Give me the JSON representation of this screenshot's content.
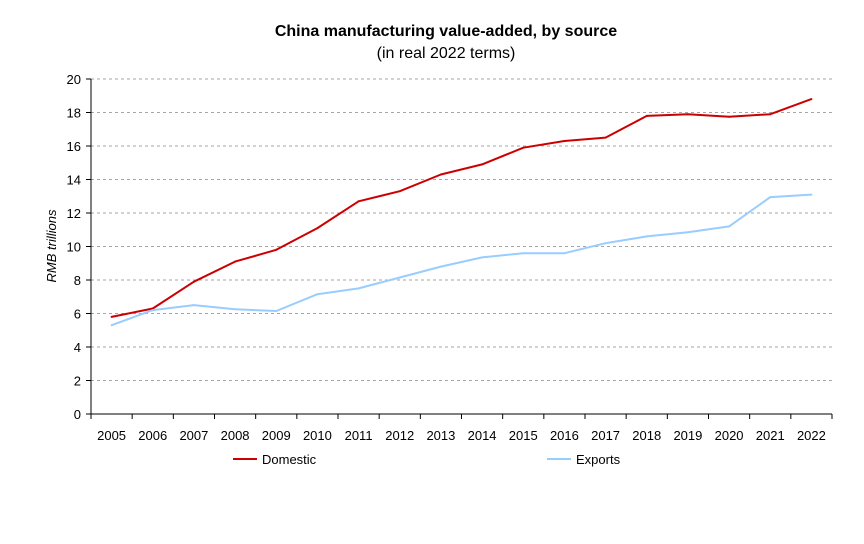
{
  "chart_data": {
    "type": "line",
    "title": "China manufacturing value-added, by source",
    "subtitle": "(in real 2022 terms)",
    "xlabel": "",
    "ylabel": "RMB trillions",
    "ylim": [
      0,
      20
    ],
    "yticks": [
      0,
      2,
      4,
      6,
      8,
      10,
      12,
      14,
      16,
      18,
      20
    ],
    "grid": true,
    "legend_position": "bottom",
    "categories": [
      "2005",
      "2006",
      "2007",
      "2008",
      "2009",
      "2010",
      "2011",
      "2012",
      "2013",
      "2014",
      "2015",
      "2016",
      "2017",
      "2018",
      "2019",
      "2020",
      "2021",
      "2022"
    ],
    "series": [
      {
        "name": "Domestic",
        "color": "#cc0000",
        "values": [
          5.8,
          6.3,
          7.9,
          9.1,
          9.8,
          11.1,
          12.7,
          13.3,
          14.3,
          14.9,
          15.9,
          16.3,
          16.5,
          17.8,
          17.9,
          17.75,
          17.9,
          18.8
        ]
      },
      {
        "name": "Exports",
        "color": "#99ccff",
        "values": [
          5.3,
          6.2,
          6.5,
          6.25,
          6.15,
          7.15,
          7.5,
          8.15,
          8.8,
          9.35,
          9.6,
          9.6,
          10.2,
          10.6,
          10.85,
          11.2,
          12.95,
          13.1
        ]
      }
    ]
  }
}
